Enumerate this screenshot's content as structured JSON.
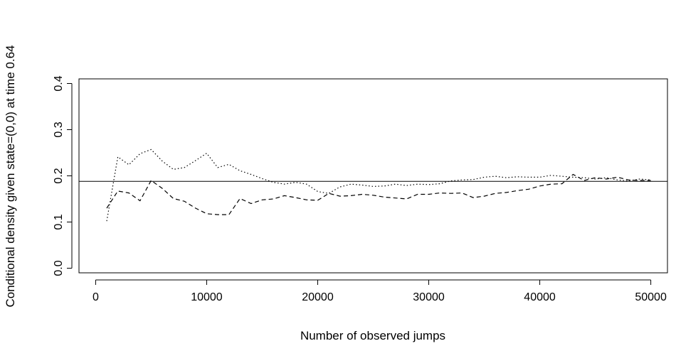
{
  "chart_data": {
    "type": "line",
    "title": "",
    "xlabel": "Number of observed jumps",
    "ylabel": "Conditional density given state=(0,0) at time 0.64",
    "xlim": [
      -1500,
      51500
    ],
    "ylim": [
      -0.01,
      0.41
    ],
    "x_ticks": [
      0,
      10000,
      20000,
      30000,
      40000,
      50000
    ],
    "x_tick_labels": [
      "0",
      "10000",
      "20000",
      "30000",
      "40000",
      "50000"
    ],
    "y_ticks": [
      0.0,
      0.1,
      0.2,
      0.3,
      0.4
    ],
    "y_tick_labels": [
      "0.0",
      "0.1",
      "0.2",
      "0.3",
      "0.4"
    ],
    "grid": false,
    "reference_line": {
      "y": 0.188,
      "style": "solid"
    },
    "series": [
      {
        "style": "dotted",
        "x": [
          1000,
          2000,
          3000,
          4000,
          5000,
          6000,
          7000,
          8000,
          9000,
          10000,
          11000,
          12000,
          13000,
          14000,
          15000,
          16000,
          17000,
          18000,
          19000,
          20000,
          21000,
          22000,
          23000,
          24000,
          25000,
          26000,
          27000,
          28000,
          29000,
          30000,
          31000,
          32000,
          33000,
          34000,
          35000,
          36000,
          37000,
          38000,
          39000,
          40000,
          41000,
          42000,
          43000,
          44000,
          45000,
          46000,
          47000,
          48000,
          49000,
          50000
        ],
        "y": [
          0.102,
          0.241,
          0.224,
          0.248,
          0.257,
          0.232,
          0.214,
          0.218,
          0.233,
          0.249,
          0.218,
          0.225,
          0.211,
          0.203,
          0.194,
          0.186,
          0.182,
          0.186,
          0.182,
          0.166,
          0.162,
          0.176,
          0.182,
          0.18,
          0.177,
          0.178,
          0.182,
          0.179,
          0.182,
          0.181,
          0.183,
          0.189,
          0.191,
          0.192,
          0.197,
          0.199,
          0.196,
          0.198,
          0.197,
          0.197,
          0.201,
          0.199,
          0.197,
          0.196,
          0.193,
          0.196,
          0.191,
          0.189,
          0.193,
          0.191
        ]
      },
      {
        "style": "dashed",
        "x": [
          1000,
          2000,
          3000,
          4000,
          5000,
          6000,
          7000,
          8000,
          9000,
          10000,
          11000,
          12000,
          13000,
          14000,
          15000,
          16000,
          17000,
          18000,
          19000,
          20000,
          21000,
          22000,
          23000,
          24000,
          25000,
          26000,
          27000,
          28000,
          29000,
          30000,
          31000,
          32000,
          33000,
          34000,
          35000,
          36000,
          37000,
          38000,
          39000,
          40000,
          41000,
          42000,
          43000,
          44000,
          45000,
          46000,
          47000,
          48000,
          49000,
          50000
        ],
        "y": [
          0.13,
          0.167,
          0.163,
          0.146,
          0.19,
          0.173,
          0.151,
          0.145,
          0.13,
          0.118,
          0.116,
          0.116,
          0.151,
          0.14,
          0.148,
          0.15,
          0.157,
          0.153,
          0.148,
          0.147,
          0.162,
          0.156,
          0.157,
          0.16,
          0.158,
          0.154,
          0.152,
          0.15,
          0.16,
          0.16,
          0.163,
          0.162,
          0.163,
          0.153,
          0.156,
          0.162,
          0.164,
          0.168,
          0.171,
          0.178,
          0.182,
          0.183,
          0.203,
          0.19,
          0.196,
          0.193,
          0.197,
          0.191,
          0.19,
          0.19
        ]
      }
    ]
  }
}
